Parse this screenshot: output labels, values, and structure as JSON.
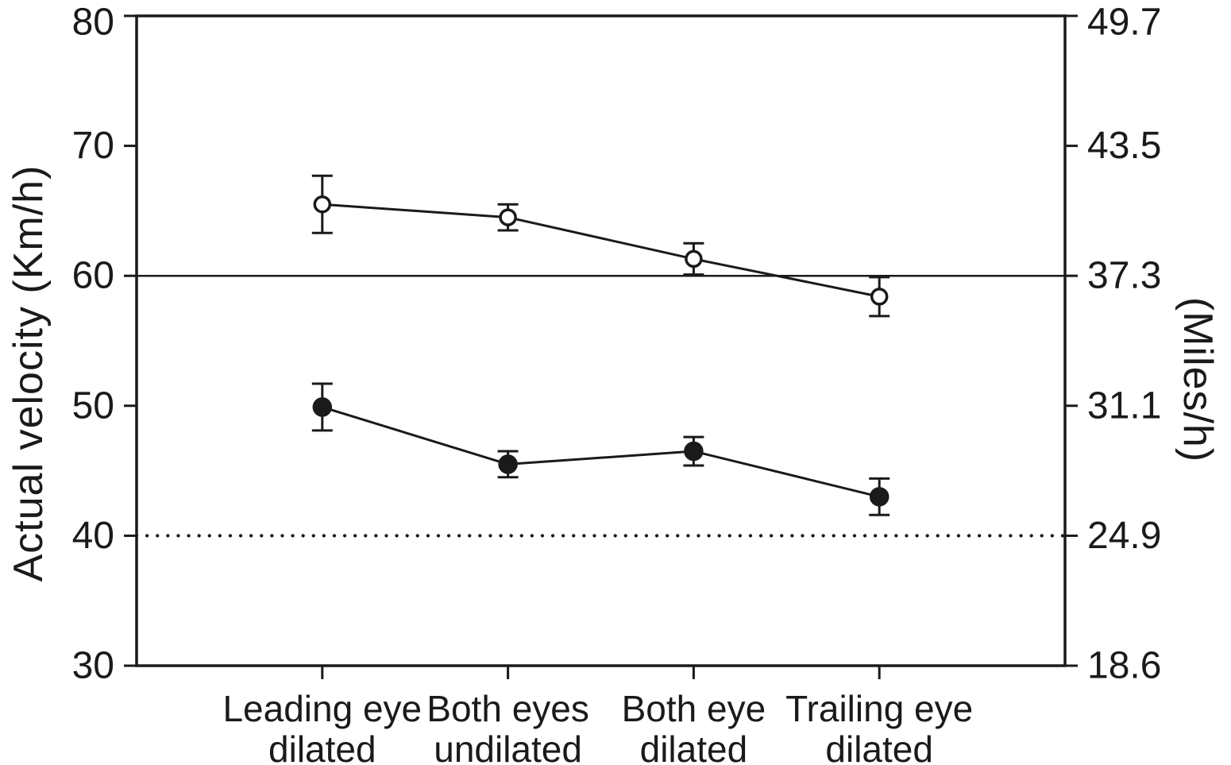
{
  "colors": {
    "ink": "#1a1a1a",
    "background": "#ffffff"
  },
  "chart_data": {
    "type": "line",
    "title": "",
    "categories": [
      "Leading eye\ndilated",
      "Both eyes\nundilated",
      "Both eye\ndilated",
      "Trailing eye\ndilated"
    ],
    "series": [
      {
        "marker": "open-circle",
        "values": [
          65.5,
          64.5,
          61.3,
          58.4
        ],
        "errors": [
          2.2,
          1.0,
          1.2,
          1.5
        ]
      },
      {
        "marker": "filled-circle",
        "values": [
          49.9,
          45.5,
          46.5,
          43.0
        ],
        "errors": [
          1.8,
          1.0,
          1.1,
          1.4
        ]
      }
    ],
    "reference_lines": [
      {
        "value": 60,
        "style": "solid"
      },
      {
        "value": 40,
        "style": "dotted"
      }
    ],
    "ylim": [
      30,
      80
    ],
    "grid": false,
    "legend": "none",
    "axes": {
      "left": {
        "title": "Actual velocity (Km/h)",
        "ticks": [
          80,
          70,
          60,
          50,
          40,
          30
        ]
      },
      "right": {
        "title": "(Miles/h)",
        "tick_labels": [
          "49.7",
          "43.5",
          "37.3",
          "31.1",
          "24.9",
          "18.6"
        ]
      }
    }
  }
}
